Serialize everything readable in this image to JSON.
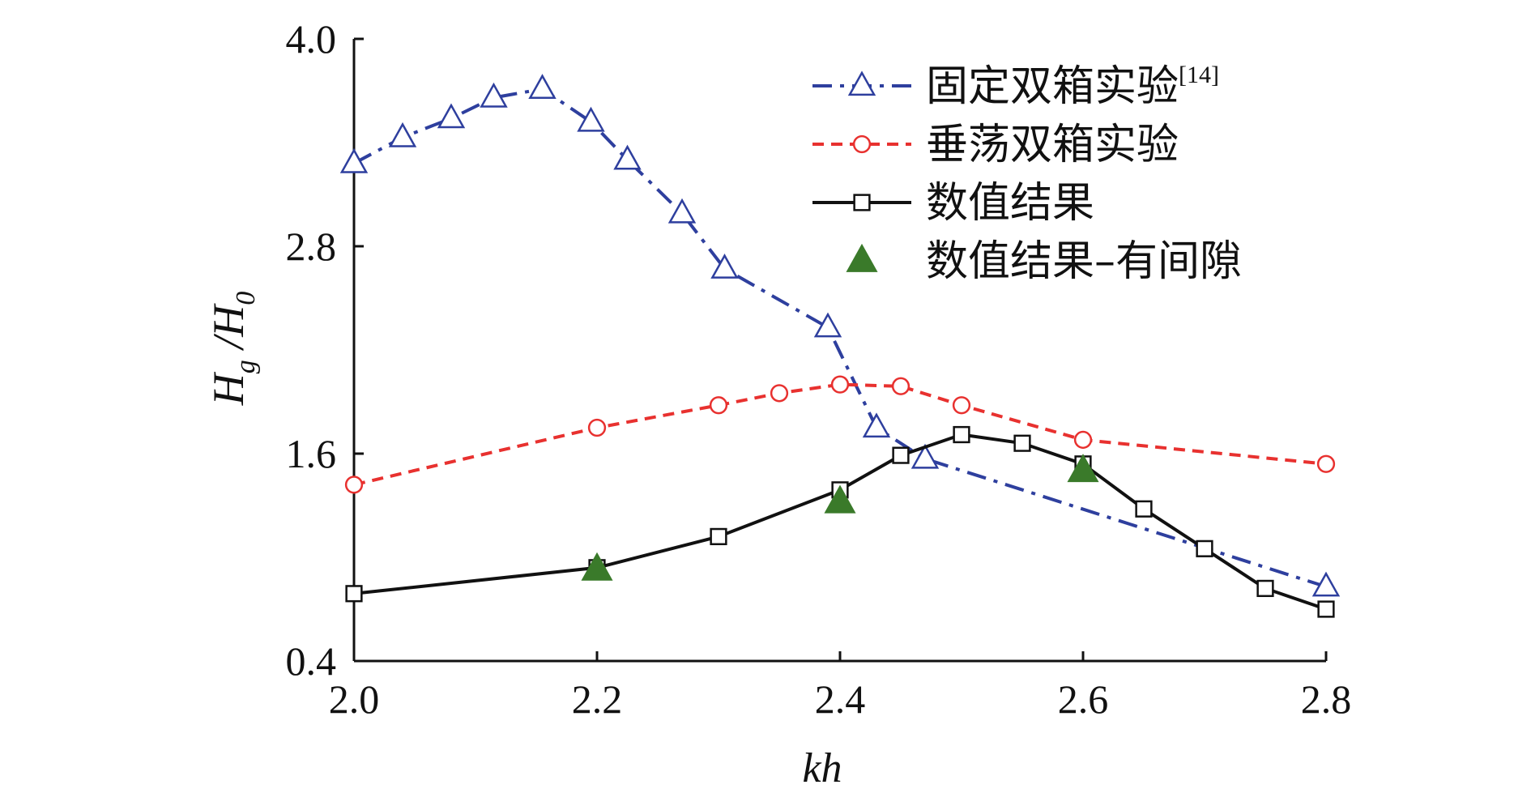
{
  "chart_data": {
    "type": "line",
    "xlabel": "kh",
    "ylabel_main": "H",
    "ylabel_sub1": "g",
    "ylabel_mid": " /H",
    "ylabel_sub2": "0",
    "xlim": [
      2.0,
      2.8
    ],
    "ylim": [
      0.4,
      4.0
    ],
    "x_ticks": [
      "2.0",
      "2.2",
      "2.4",
      "2.6",
      "2.8"
    ],
    "y_ticks": [
      "0.4",
      "1.6",
      "2.8",
      "4.0"
    ],
    "legend_position": "top-right",
    "series": [
      {
        "name": "固定双箱实验",
        "name_sup": "[14]",
        "color": "#2e3f9e",
        "line_style": "dash-dot",
        "marker": "triangle-open",
        "x": [
          2.0,
          2.04,
          2.08,
          2.115,
          2.155,
          2.195,
          2.225,
          2.27,
          2.305,
          2.39,
          2.43,
          2.47,
          2.8
        ],
        "y": [
          3.28,
          3.43,
          3.54,
          3.66,
          3.71,
          3.52,
          3.3,
          2.99,
          2.67,
          2.33,
          1.75,
          1.57,
          0.83
        ]
      },
      {
        "name": "垂荡双箱实验",
        "color": "#e8312f",
        "line_style": "dashed",
        "marker": "circle-open",
        "x": [
          2.0,
          2.2,
          2.3,
          2.35,
          2.4,
          2.45,
          2.5,
          2.6,
          2.8
        ],
        "y": [
          1.42,
          1.75,
          1.88,
          1.95,
          2.0,
          1.99,
          1.88,
          1.68,
          1.54
        ]
      },
      {
        "name": "数值结果",
        "color": "#111111",
        "line_style": "solid",
        "marker": "square-open",
        "x": [
          2.0,
          2.2,
          2.3,
          2.4,
          2.45,
          2.5,
          2.55,
          2.6,
          2.65,
          2.7,
          2.75,
          2.8
        ],
        "y": [
          0.79,
          0.94,
          1.12,
          1.39,
          1.59,
          1.71,
          1.66,
          1.54,
          1.28,
          1.05,
          0.82,
          0.7
        ]
      },
      {
        "name": "数值结果–有间隙",
        "color": "#3a7a2a",
        "line_style": "none",
        "marker": "triangle-filled",
        "x": [
          2.2,
          2.4,
          2.6
        ],
        "y": [
          0.93,
          1.32,
          1.5
        ]
      }
    ]
  }
}
